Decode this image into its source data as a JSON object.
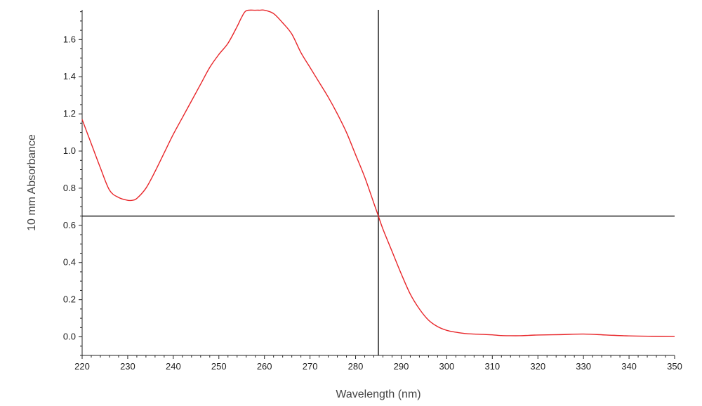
{
  "chart_data": {
    "type": "line",
    "xlabel": "Wavelength (nm)",
    "ylabel": "10 mm Absorbance",
    "xlim": [
      220,
      350
    ],
    "ylim": [
      -0.1,
      1.76
    ],
    "x_ticks": [
      220,
      230,
      240,
      250,
      260,
      270,
      280,
      290,
      300,
      310,
      320,
      330,
      340,
      350
    ],
    "x_tick_labels": [
      "220",
      "230",
      "240",
      "250",
      "260",
      "270",
      "280",
      "290",
      "300",
      "310",
      "320",
      "330",
      "340",
      "350"
    ],
    "y_ticks": [
      0.0,
      0.2,
      0.4,
      0.6,
      0.8,
      1.0,
      1.2,
      1.4,
      1.6
    ],
    "y_tick_labels": [
      "0.0",
      "0.2",
      "0.4",
      "0.6",
      "0.8",
      "1.0",
      "1.2",
      "1.4",
      "1.6"
    ],
    "grid": false,
    "crosshair": {
      "x": 285,
      "y": 0.65
    },
    "colors": {
      "series": "#e8262a",
      "crosshair": "#222222",
      "axis": "#222222"
    },
    "series": [
      {
        "x": [
          220,
          222,
          224,
          226,
          228,
          230,
          231,
          232,
          234,
          236,
          238,
          240,
          242,
          244,
          246,
          248,
          250,
          252,
          254,
          255,
          256,
          258,
          259,
          260,
          262,
          264,
          266,
          268,
          270,
          272,
          274,
          276,
          278,
          280,
          282,
          284,
          285,
          286,
          288,
          290,
          292,
          294,
          296,
          298,
          300,
          302,
          304,
          306,
          308,
          310,
          312,
          314,
          316,
          318,
          320,
          325,
          330,
          335,
          340,
          345,
          350
        ],
        "y": [
          1.17,
          1.04,
          0.91,
          0.79,
          0.75,
          0.735,
          0.735,
          0.745,
          0.8,
          0.89,
          0.99,
          1.09,
          1.18,
          1.27,
          1.36,
          1.45,
          1.52,
          1.58,
          1.67,
          1.72,
          1.755,
          1.758,
          1.758,
          1.758,
          1.74,
          1.69,
          1.63,
          1.53,
          1.45,
          1.37,
          1.29,
          1.2,
          1.1,
          0.98,
          0.86,
          0.72,
          0.65,
          0.58,
          0.46,
          0.34,
          0.23,
          0.15,
          0.09,
          0.055,
          0.035,
          0.025,
          0.018,
          0.015,
          0.013,
          0.011,
          0.007,
          0.006,
          0.006,
          0.008,
          0.01,
          0.012,
          0.015,
          0.01,
          0.005,
          0.003,
          0.002
        ]
      }
    ]
  }
}
